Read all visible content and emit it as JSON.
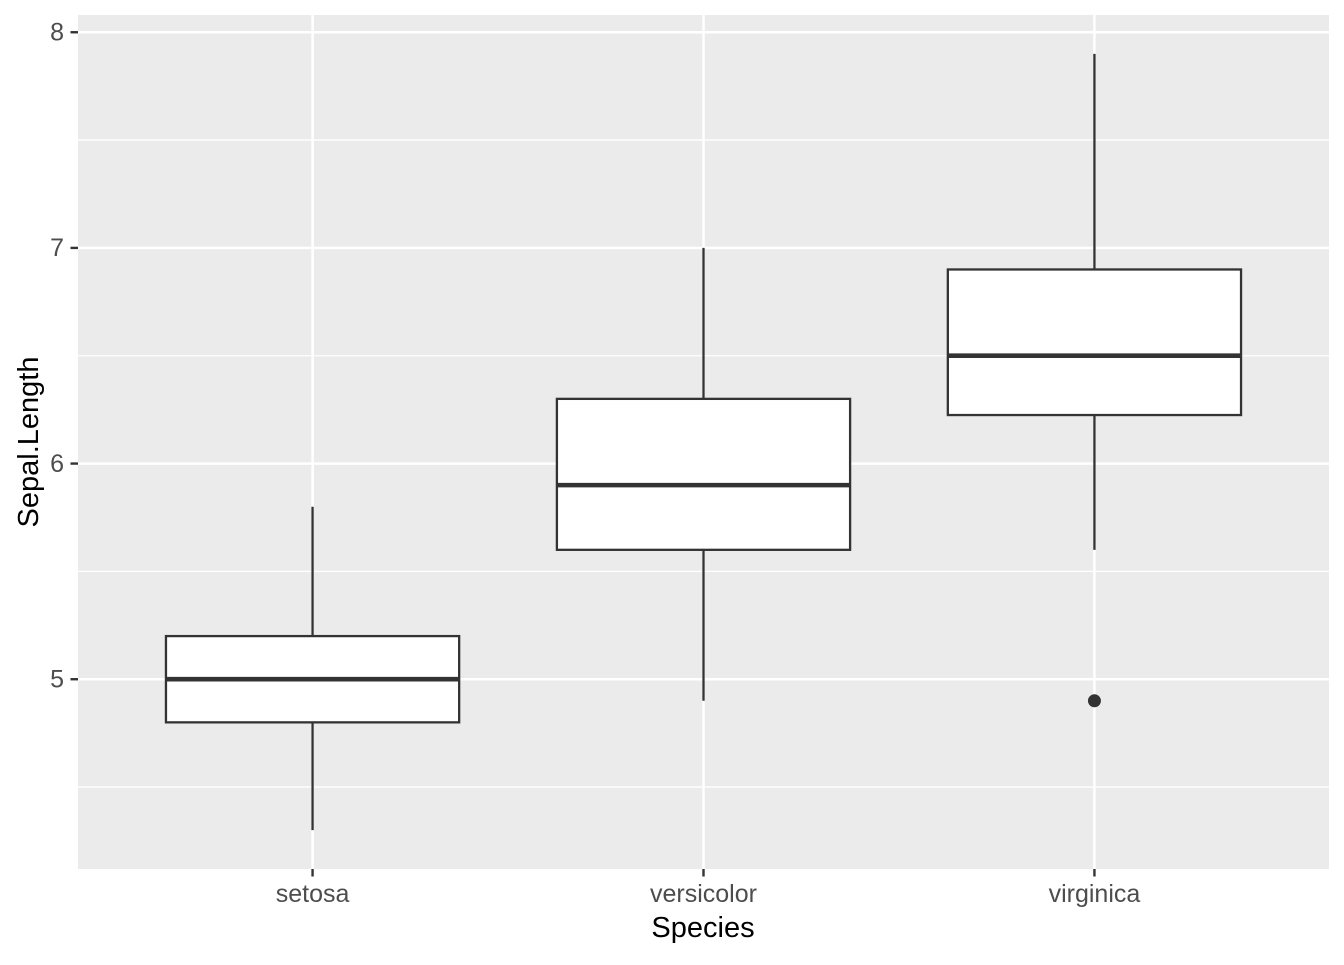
{
  "chart_data": {
    "type": "boxplot",
    "title": "",
    "xlabel": "Species",
    "ylabel": "Sepal.Length",
    "categories": [
      "setosa",
      "versicolor",
      "virginica"
    ],
    "ylim": [
      4.12,
      8.08
    ],
    "yticks": [
      5,
      6,
      7,
      8
    ],
    "ytick_labels": [
      "5",
      "6",
      "7",
      "8"
    ],
    "yminor": [
      4.5,
      5.5,
      6.5,
      7.5
    ],
    "grid": "on",
    "legend": "none",
    "series": [
      {
        "category": "setosa",
        "whisker_low": 4.3,
        "q1": 4.8,
        "median": 5.0,
        "q3": 5.2,
        "whisker_high": 5.8,
        "outliers": []
      },
      {
        "category": "versicolor",
        "whisker_low": 4.9,
        "q1": 5.6,
        "median": 5.9,
        "q3": 6.3,
        "whisker_high": 7.0,
        "outliers": []
      },
      {
        "category": "virginica",
        "whisker_low": 5.6,
        "q1": 6.225,
        "median": 6.5,
        "q3": 6.9,
        "whisker_high": 7.9,
        "outliers": [
          4.9
        ]
      }
    ],
    "style": {
      "panel_bg": "#EBEBEB",
      "grid_major_color": "#FFFFFF",
      "grid_minor_color": "#FFFFFF",
      "box_stroke": "#333333",
      "box_fill": "#FFFFFF",
      "outlier_color": "#333333",
      "tick_mark_color": "#333333",
      "tick_label_color": "#4D4D4D",
      "axis_title_color": "#000000"
    }
  }
}
